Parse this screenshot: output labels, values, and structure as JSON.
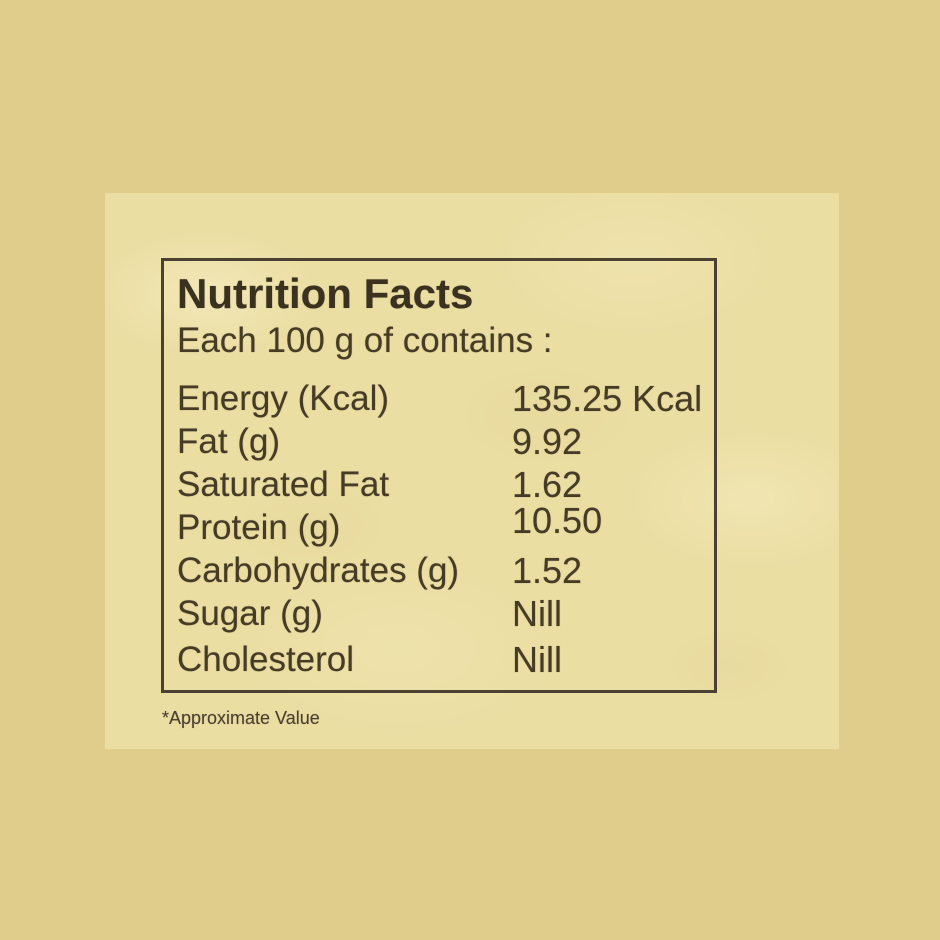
{
  "label": {
    "title": "Nutrition Facts",
    "subtitle": "Each 100 g of contains :",
    "rows": [
      {
        "name": "Energy (Kcal)",
        "value": "135.25 Kcal"
      },
      {
        "name": "Fat (g)",
        "value": "9.92"
      },
      {
        "name": "Saturated Fat",
        "value": "1.62"
      },
      {
        "name": "Protein (g)",
        "value": "10.50"
      },
      {
        "name": "Carbohydrates (g)",
        "value": "1.52"
      },
      {
        "name": "Sugar (g)",
        "value": "Nill"
      },
      {
        "name": "Cholesterol",
        "value": "Nill"
      }
    ],
    "footnote": "*Approximate Value"
  },
  "colors": {
    "outer_background": "#e0cc8b",
    "label_background": "#ebdea3",
    "panel_border": "#4b4132",
    "text": "#463c26"
  }
}
